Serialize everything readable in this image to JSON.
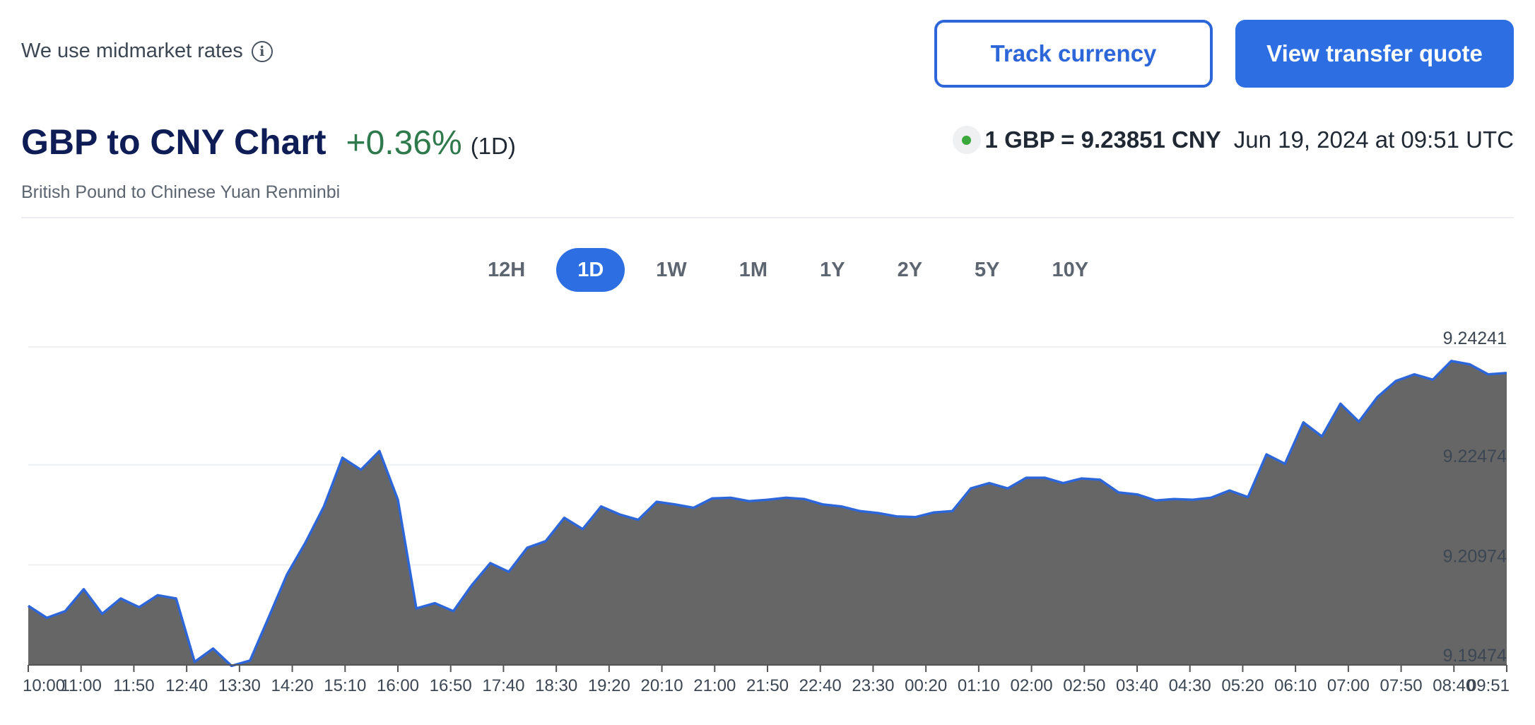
{
  "header": {
    "midmarket_label": "We use midmarket rates",
    "info_icon": "info-circle-icon",
    "track_button": "Track currency",
    "quote_button": "View transfer quote"
  },
  "title": {
    "heading": "GBP to CNY Chart",
    "change": "+0.36%",
    "period": "(1D)",
    "subtitle": "British Pound to Chinese Yuan Renminbi"
  },
  "rate": {
    "value": "1 GBP = 9.23851 CNY",
    "timestamp": "Jun 19, 2024 at 09:51 UTC"
  },
  "tabs": [
    {
      "label": "12H",
      "active": false
    },
    {
      "label": "1D",
      "active": true
    },
    {
      "label": "1W",
      "active": false
    },
    {
      "label": "1M",
      "active": false
    },
    {
      "label": "1Y",
      "active": false
    },
    {
      "label": "2Y",
      "active": false
    },
    {
      "label": "5Y",
      "active": false
    },
    {
      "label": "10Y",
      "active": false
    }
  ],
  "colors": {
    "accent": "#2d6fe3",
    "line": "#2d66d9",
    "fill": "#666666",
    "positive": "#2f7a4c"
  },
  "chart_data": {
    "type": "area",
    "y_ticks": [
      "9.24241",
      "9.22474",
      "9.20974",
      "9.19474"
    ],
    "ylim": [
      9.19474,
      9.24241
    ],
    "x_ticks": [
      "10:00",
      "11:00",
      "11:50",
      "12:40",
      "13:30",
      "14:20",
      "15:10",
      "16:00",
      "16:50",
      "17:40",
      "18:30",
      "19:20",
      "20:10",
      "21:00",
      "21:50",
      "22:40",
      "23:30",
      "00:20",
      "01:10",
      "02:00",
      "02:50",
      "03:40",
      "04:30",
      "05:20",
      "06:10",
      "07:00",
      "07:50",
      "08:40",
      "09:51"
    ],
    "values": [
      9.2036,
      9.2018,
      9.2028,
      9.2061,
      9.2024,
      9.2047,
      9.2034,
      9.2052,
      9.2047,
      9.1952,
      9.1972,
      9.1946,
      9.1954,
      9.2018,
      9.2083,
      9.2131,
      9.2185,
      9.2258,
      9.224,
      9.2268,
      9.2195,
      9.2032,
      9.204,
      9.2028,
      9.2067,
      9.21,
      9.2087,
      9.2123,
      9.2133,
      9.2168,
      9.2151,
      9.2185,
      9.2173,
      9.2165,
      9.2192,
      9.2188,
      9.2183,
      9.2197,
      9.2198,
      9.2193,
      9.2195,
      9.2198,
      9.2196,
      9.2188,
      9.2185,
      9.2178,
      9.2175,
      9.217,
      9.2169,
      9.2176,
      9.2178,
      9.2212,
      9.222,
      9.2212,
      9.2228,
      9.2228,
      9.222,
      9.2227,
      9.2225,
      9.2206,
      9.2203,
      9.2194,
      9.2196,
      9.2195,
      9.2198,
      9.2209,
      9.2199,
      9.2263,
      9.2249,
      9.2311,
      9.229,
      9.2339,
      9.2312,
      9.2349,
      9.2373,
      9.2383,
      9.2375,
      9.2403,
      9.2398,
      9.2383,
      9.2385
    ]
  }
}
